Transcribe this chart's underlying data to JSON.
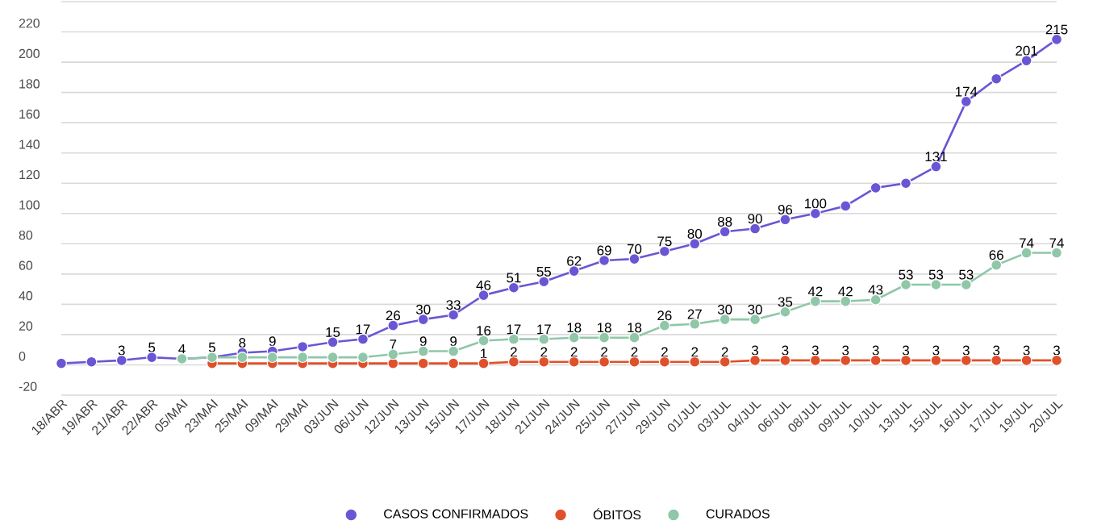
{
  "chart_data": {
    "type": "line",
    "categories": [
      "18/ABR",
      "19/ABR",
      "21/ABR",
      "22/ABR",
      "05/MAI",
      "23/MAI",
      "25/MAI",
      "09/MAI",
      "29/MAI",
      "03/JUN",
      "06/JUN",
      "12/JUN",
      "13/JUN",
      "15/JUN",
      "17/JUN",
      "18/JUN",
      "21/JUN",
      "24/JUN",
      "25/JUN",
      "27/JUN",
      "29/JUN",
      "01/JUL",
      "03/JUL",
      "04/JUL",
      "06/JUL",
      "08/JUL",
      "09/JUL",
      "10/JUL",
      "13/JUL",
      "15/JUL",
      "16/JUL",
      "17/JUL",
      "19/JUL",
      "20/JUL"
    ],
    "series": [
      {
        "name": "CASOS CONFIRMADOS",
        "color": "#6a56d4",
        "values": [
          1,
          2,
          3,
          5,
          4,
          5,
          8,
          9,
          12,
          15,
          17,
          26,
          30,
          33,
          46,
          51,
          55,
          62,
          69,
          70,
          75,
          80,
          88,
          90,
          96,
          100,
          105,
          117,
          120,
          131,
          174,
          189,
          201,
          215
        ],
        "value_labels": [
          null,
          null,
          "3",
          "5",
          "4",
          "5",
          "8",
          "9",
          null,
          "15",
          "17",
          "26",
          "30",
          "33",
          "46",
          "51",
          "55",
          "62",
          "69",
          "70",
          "75",
          "80",
          "88",
          "90",
          "96",
          "100",
          null,
          null,
          null,
          "131",
          "174",
          null,
          "201",
          "215"
        ]
      },
      {
        "name": "ÓBITOS",
        "color": "#e0502a",
        "values": [
          null,
          null,
          null,
          null,
          null,
          1,
          1,
          1,
          1,
          1,
          1,
          1,
          1,
          1,
          1,
          2,
          2,
          2,
          2,
          2,
          2,
          2,
          2,
          3,
          3,
          3,
          3,
          3,
          3,
          3,
          3,
          3,
          3,
          3
        ],
        "value_labels": [
          null,
          null,
          null,
          null,
          null,
          null,
          null,
          null,
          null,
          null,
          null,
          null,
          null,
          null,
          "1",
          "2",
          "2",
          "2",
          "2",
          "2",
          "2",
          "2",
          "2",
          "3",
          "3",
          "3",
          "3",
          "3",
          "3",
          "3",
          "3",
          "3",
          "3",
          "3"
        ]
      },
      {
        "name": "CURADOS",
        "color": "#8fc7a8",
        "values": [
          null,
          null,
          null,
          null,
          4,
          5,
          5,
          5,
          5,
          5,
          5,
          7,
          9,
          9,
          16,
          17,
          17,
          18,
          18,
          18,
          26,
          27,
          30,
          30,
          35,
          42,
          42,
          43,
          53,
          53,
          53,
          66,
          74,
          74
        ],
        "value_labels": [
          null,
          null,
          null,
          null,
          null,
          null,
          null,
          null,
          null,
          null,
          null,
          "7",
          "9",
          "9",
          "16",
          "17",
          "17",
          "18",
          "18",
          "18",
          "26",
          "27",
          "30",
          "30",
          "35",
          "42",
          "42",
          "43",
          "53",
          "53",
          "53",
          "66",
          "74",
          "74"
        ]
      }
    ],
    "ylim": [
      -20,
      240
    ],
    "yticks": [
      -20,
      0,
      20,
      40,
      60,
      80,
      100,
      120,
      140,
      160,
      180,
      200,
      220,
      {
        "value": 240,
        "label": null
      }
    ],
    "grid": "y",
    "legend": "bottom",
    "marker": "circle",
    "line_style": "solid"
  }
}
